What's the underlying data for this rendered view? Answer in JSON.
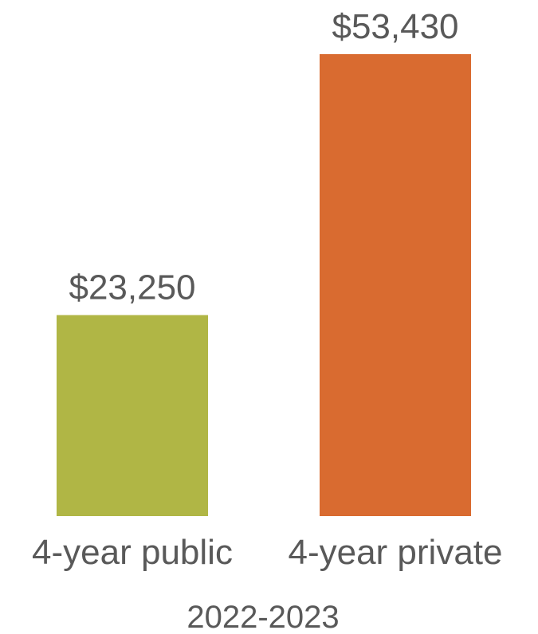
{
  "chart_data": {
    "type": "bar",
    "categories": [
      "4-year public",
      "4-year private"
    ],
    "values": [
      23250,
      53430
    ],
    "data_labels": [
      "$23,250",
      "$53,430"
    ],
    "colors": [
      "#b0b645",
      "#d96b30"
    ],
    "title": "",
    "xlabel": "2022-2023",
    "ylabel": "",
    "ylim": [
      0,
      53430
    ],
    "grid": false,
    "legend": "none"
  }
}
